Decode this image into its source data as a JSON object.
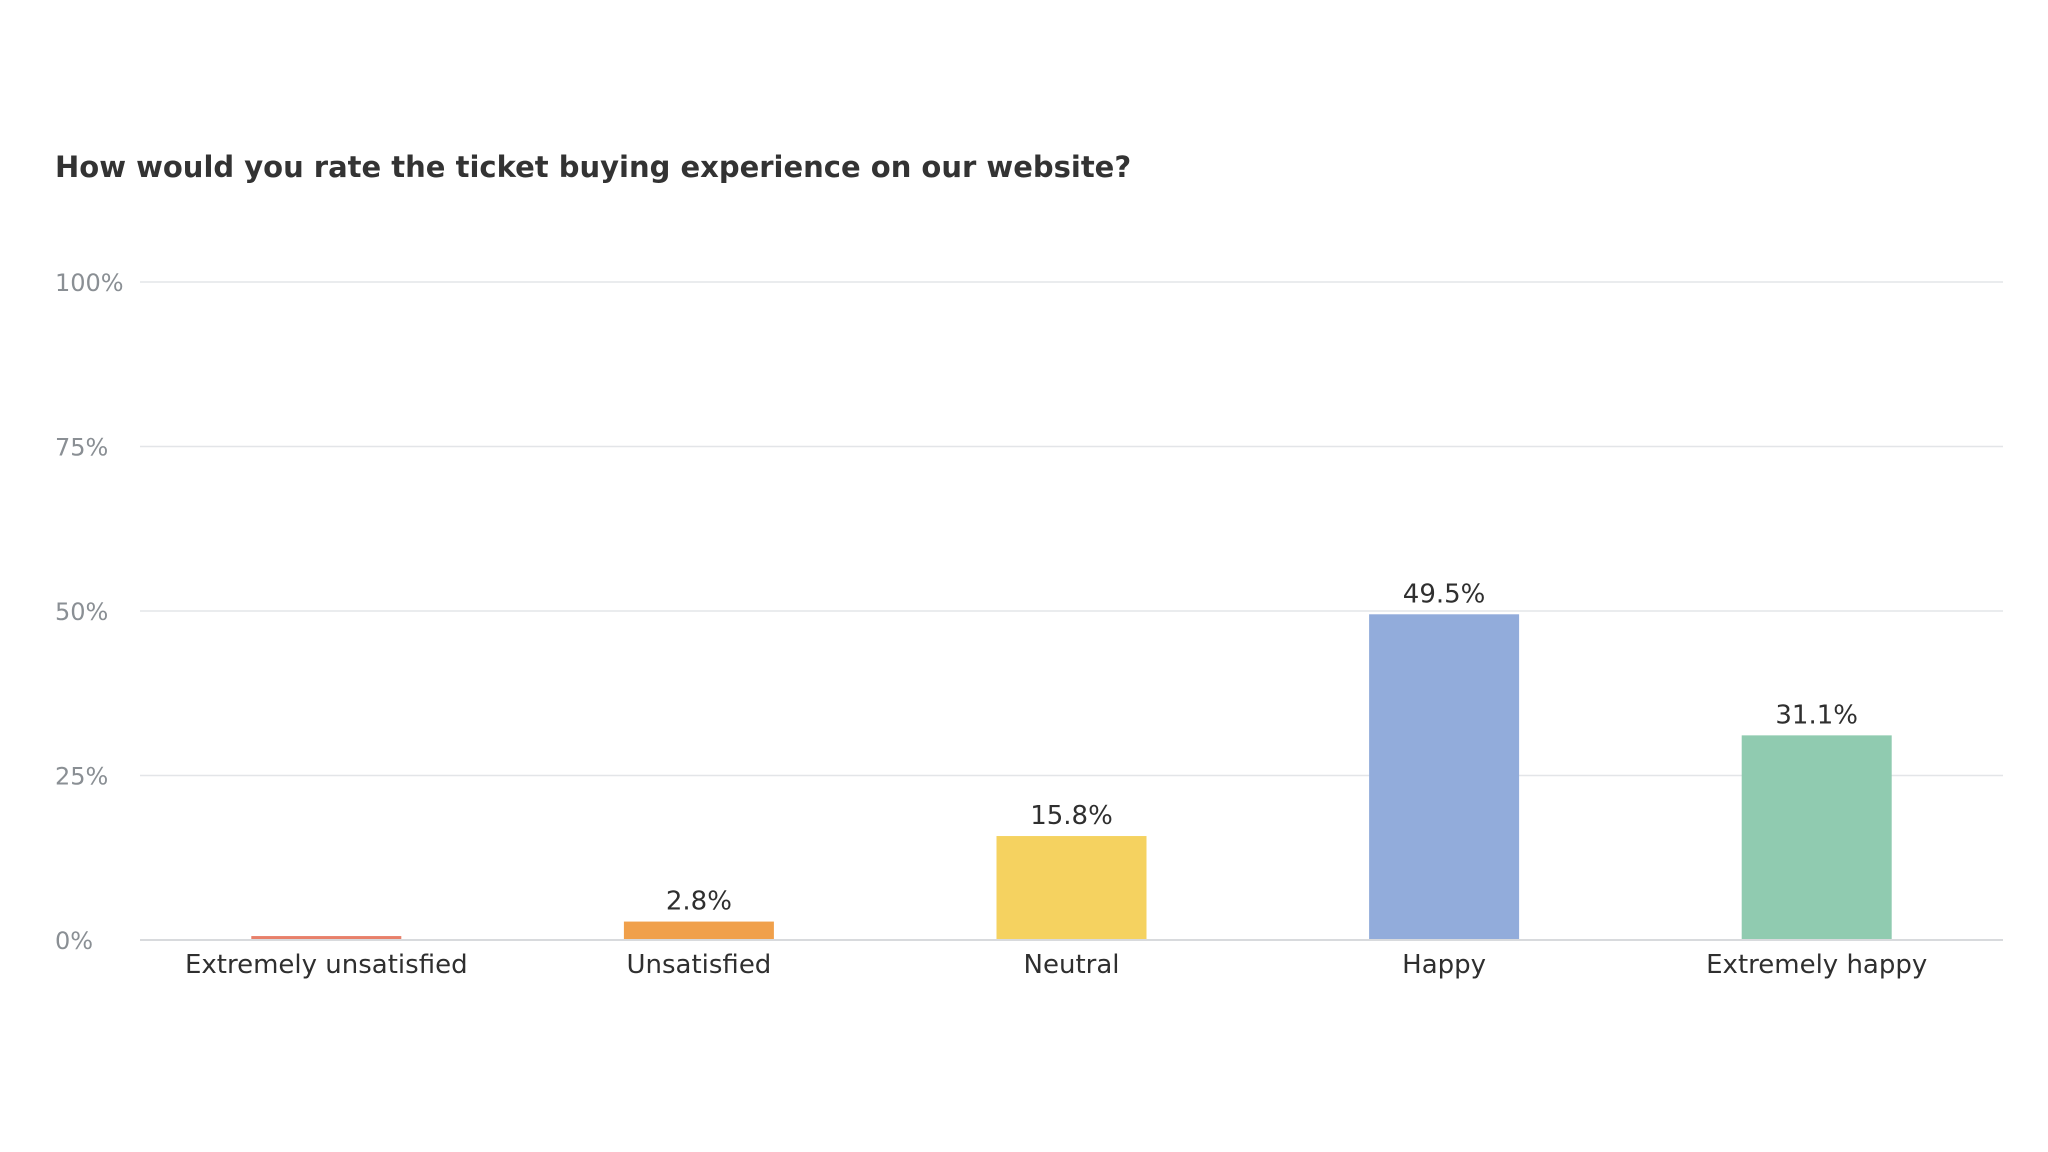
{
  "chart_data": {
    "type": "bar",
    "title": "How would you rate the ticket buying experience on our website?",
    "categories": [
      "Extremely unsatisfied",
      "Unsatisfied",
      "Neutral",
      "Happy",
      "Extremely happy"
    ],
    "values": [
      0.6,
      2.8,
      15.8,
      49.5,
      31.1
    ],
    "value_labels": [
      "",
      "2.8%",
      "15.8%",
      "49.5%",
      "31.1%"
    ],
    "colors": [
      "#e8806a",
      "#f0a04b",
      "#f5d260",
      "#92acdb",
      "#90cbb0"
    ],
    "y_ticks": [
      0,
      25,
      50,
      75,
      100
    ],
    "y_tick_labels": [
      "0%",
      "25%",
      "50%",
      "75%",
      "100%"
    ],
    "ylim": [
      0,
      100
    ],
    "xlabel": "",
    "ylabel": "",
    "grid": true,
    "legend": "none"
  }
}
